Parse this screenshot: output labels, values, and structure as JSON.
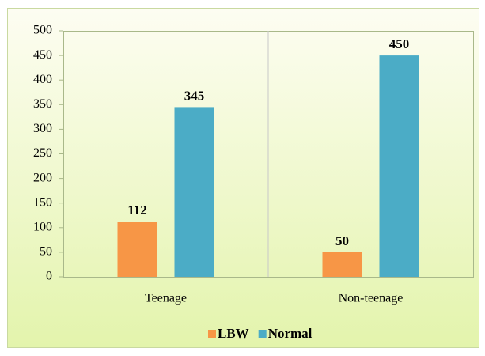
{
  "chart_data": {
    "type": "bar",
    "categories": [
      "Teenage",
      "Non-teenage"
    ],
    "series": [
      {
        "name": "LBW",
        "color": "#f79646",
        "values": [
          112,
          50
        ]
      },
      {
        "name": "Normal",
        "color": "#4bacc6",
        "values": [
          345,
          450
        ]
      }
    ],
    "ylim": [
      0,
      500
    ],
    "yticks": [
      0,
      50,
      100,
      150,
      200,
      250,
      300,
      350,
      400,
      450,
      500
    ],
    "legend": "bottom"
  }
}
